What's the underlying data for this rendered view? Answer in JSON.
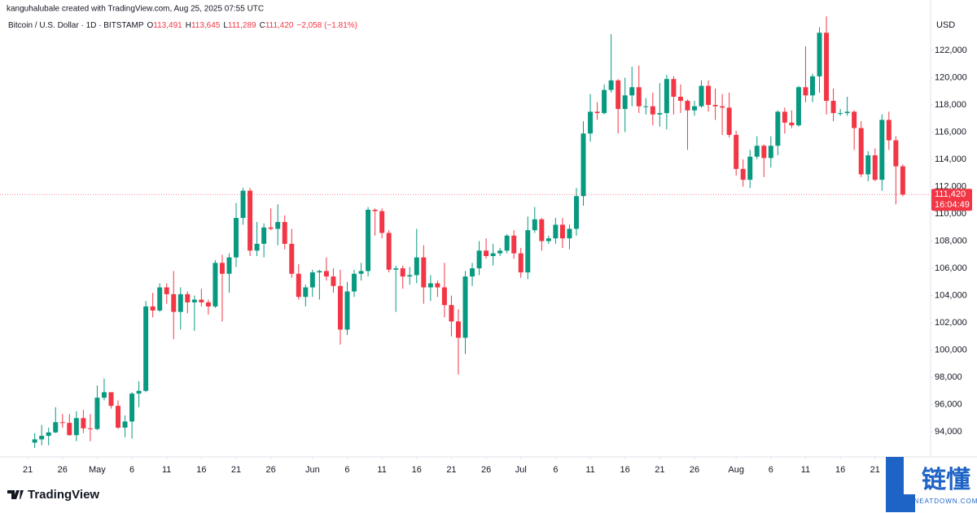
{
  "header": {
    "credit": "kanguhalubale created with TradingView.com, Aug 25, 2025 07:55 UTC",
    "symbol": "Bitcoin / U.S. Dollar · 1D · BITSTAMP",
    "ohlc": [
      {
        "key": "O",
        "value": "113,491"
      },
      {
        "key": "H",
        "value": "113,645"
      },
      {
        "key": "L",
        "value": "111,289"
      },
      {
        "key": "C",
        "value": "111,420"
      }
    ],
    "change": "−2,058 (−1.81%)"
  },
  "footer": {
    "logo": "TradingView",
    "watermark": "链懂",
    "watermark_sub": "NEATDOWN.COM"
  },
  "chart_data": {
    "type": "candlestick",
    "currency": "USD",
    "up_color": "#089981",
    "down_color": "#f23645",
    "x": [
      "04-22",
      "04-23",
      "04-24",
      "04-25",
      "04-26",
      "04-27",
      "04-28",
      "04-29",
      "04-30",
      "05-01",
      "05-02",
      "05-03",
      "05-04",
      "05-05",
      "05-06",
      "05-07",
      "05-08",
      "05-09",
      "05-10",
      "05-11",
      "05-12",
      "05-13",
      "05-14",
      "05-15",
      "05-16",
      "05-17",
      "05-18",
      "05-19",
      "05-20",
      "05-21",
      "05-22",
      "05-23",
      "05-24",
      "05-25",
      "05-26",
      "05-27",
      "05-28",
      "05-29",
      "05-30",
      "05-31",
      "06-01",
      "06-02",
      "06-03",
      "06-04",
      "06-05",
      "06-06",
      "06-07",
      "06-08",
      "06-09",
      "06-10",
      "06-11",
      "06-12",
      "06-13",
      "06-14",
      "06-15",
      "06-16",
      "06-17",
      "06-18",
      "06-19",
      "06-20",
      "06-21",
      "06-22",
      "06-23",
      "06-24",
      "06-25",
      "06-26",
      "06-27",
      "06-28",
      "06-29",
      "06-30",
      "07-01",
      "07-02",
      "07-03",
      "07-04",
      "07-05",
      "07-06",
      "07-07",
      "07-08",
      "07-09",
      "07-10",
      "07-11",
      "07-12",
      "07-13",
      "07-14",
      "07-15",
      "07-16",
      "07-17",
      "07-18",
      "07-19",
      "07-20",
      "07-21",
      "07-22",
      "07-23",
      "07-24",
      "07-25",
      "07-26",
      "07-27",
      "07-28",
      "07-29",
      "07-30",
      "07-31",
      "08-01",
      "08-02",
      "08-03",
      "08-04",
      "08-05",
      "08-06",
      "08-07",
      "08-08",
      "08-09",
      "08-10",
      "08-11",
      "08-12",
      "08-13",
      "08-14",
      "08-15",
      "08-16",
      "08-17",
      "08-18",
      "08-19",
      "08-20",
      "08-21",
      "08-22",
      "08-23",
      "08-24",
      "08-25"
    ],
    "open": [
      93200,
      93440,
      93700,
      93950,
      94700,
      94650,
      93750,
      95000,
      94250,
      94200,
      96500,
      96900,
      95900,
      94300,
      94750,
      96800,
      97000,
      103200,
      102900,
      104600,
      104100,
      102800,
      104100,
      103500,
      103700,
      103500,
      103200,
      106400,
      105600,
      106800,
      109700,
      111700,
      107300,
      107800,
      109000,
      108900,
      109400,
      107800,
      105600,
      103900,
      104600,
      105700,
      105800,
      105400,
      104700,
      101500,
      104300,
      105600,
      105800,
      110300,
      110200,
      108600,
      105900,
      106000,
      105400,
      105500,
      106800,
      104600,
      104900,
      104600,
      103300,
      102100,
      100900,
      105400,
      106000,
      107300,
      106900,
      107100,
      107300,
      108400,
      107100,
      105700,
      108800,
      109600,
      108000,
      108200,
      109200,
      108200,
      108900,
      111300,
      115900,
      117500,
      117400,
      119100,
      119800,
      117700,
      118700,
      119300,
      117900,
      117900,
      117300,
      117400,
      119900,
      118600,
      118300,
      117600,
      117900,
      119400,
      118000,
      117900,
      117800,
      115800,
      113300,
      112500,
      114200,
      115000,
      114100,
      115000,
      117500,
      116700,
      116500,
      119300,
      118700,
      120100,
      123300,
      118300,
      117400,
      117400,
      117500,
      116300,
      112900,
      114300,
      112500,
      116900,
      115400,
      113491
    ],
    "high": [
      93900,
      94500,
      94300,
      95800,
      95300,
      95300,
      95500,
      95600,
      95300,
      97400,
      97900,
      96900,
      96300,
      95200,
      96900,
      97700,
      103600,
      104200,
      104900,
      104900,
      105800,
      104600,
      104300,
      104000,
      104500,
      103700,
      106600,
      107000,
      107100,
      110800,
      111900,
      111900,
      109400,
      109300,
      110400,
      110700,
      109900,
      108900,
      106300,
      104800,
      105900,
      105900,
      106800,
      106000,
      105900,
      105000,
      105900,
      106400,
      110500,
      110400,
      110400,
      108800,
      106200,
      106200,
      106100,
      108900,
      107700,
      105500,
      105100,
      106400,
      104000,
      103000,
      105800,
      106400,
      108000,
      108200,
      107800,
      107500,
      108500,
      108800,
      107500,
      109800,
      110500,
      109700,
      108400,
      109700,
      109700,
      109200,
      111900,
      116800,
      118800,
      118200,
      119500,
      123200,
      119900,
      120000,
      120800,
      120900,
      118500,
      118900,
      119600,
      120200,
      120100,
      119500,
      118400,
      118300,
      119800,
      119800,
      119200,
      118800,
      118900,
      116100,
      114000,
      114700,
      115700,
      115100,
      115700,
      117600,
      117800,
      117600,
      119400,
      122300,
      120300,
      123700,
      124500,
      119200,
      117700,
      118600,
      117600,
      116800,
      114600,
      114800,
      117300,
      117500,
      115700,
      113645
    ],
    "low": [
      92800,
      93000,
      93000,
      93900,
      94300,
      93700,
      93300,
      93900,
      93300,
      94100,
      96300,
      95700,
      94200,
      93600,
      93500,
      95800,
      96900,
      102400,
      102800,
      103400,
      100800,
      101500,
      102700,
      101400,
      103200,
      102600,
      103100,
      102100,
      104200,
      106100,
      109200,
      106900,
      106900,
      106800,
      108800,
      107700,
      107400,
      105300,
      103700,
      103200,
      103900,
      103700,
      105100,
      104200,
      100400,
      101100,
      103900,
      105100,
      105400,
      108400,
      108200,
      105700,
      102800,
      104500,
      104800,
      104900,
      103400,
      103600,
      103900,
      102400,
      101000,
      98200,
      99700,
      104700,
      105500,
      106700,
      106200,
      106900,
      107100,
      106700,
      105300,
      105200,
      108600,
      107300,
      107800,
      107800,
      107500,
      107400,
      108400,
      110600,
      115300,
      116900,
      117300,
      118900,
      115900,
      116000,
      117900,
      117400,
      117300,
      116500,
      116400,
      116200,
      117300,
      117400,
      114700,
      117200,
      117800,
      117500,
      116900,
      115800,
      115600,
      112800,
      112000,
      111900,
      114000,
      112700,
      113400,
      114300,
      115900,
      116300,
      116400,
      118200,
      118200,
      118900,
      117300,
      116800,
      117200,
      117200,
      114700,
      112700,
      112400,
      112400,
      111700,
      114700,
      110700,
      111289
    ],
    "close": [
      93440,
      93700,
      93950,
      94700,
      94650,
      93750,
      95000,
      94250,
      94200,
      96500,
      96900,
      95900,
      94300,
      94750,
      96800,
      97000,
      103200,
      102900,
      104600,
      104100,
      102800,
      104100,
      103500,
      103700,
      103500,
      103200,
      106400,
      105600,
      106800,
      109700,
      111700,
      107300,
      107800,
      109000,
      108900,
      109400,
      107800,
      105600,
      103900,
      104600,
      105700,
      105800,
      105400,
      104700,
      101500,
      104300,
      105600,
      105800,
      110300,
      110200,
      108600,
      105900,
      106000,
      105400,
      105500,
      106800,
      104600,
      104900,
      104600,
      103300,
      102100,
      100900,
      105400,
      106000,
      107300,
      106900,
      107100,
      107300,
      108400,
      107100,
      105700,
      108800,
      109600,
      108000,
      108200,
      109200,
      108200,
      108900,
      111300,
      115900,
      117500,
      117400,
      119100,
      119800,
      117700,
      118700,
      119300,
      117900,
      117900,
      117300,
      117400,
      119900,
      118600,
      118300,
      117600,
      117900,
      119400,
      118000,
      117900,
      117800,
      115800,
      113300,
      112500,
      114200,
      115000,
      114100,
      115000,
      117500,
      116700,
      116500,
      119300,
      118700,
      120100,
      123300,
      118300,
      117400,
      117400,
      117500,
      116300,
      112900,
      114300,
      112500,
      116900,
      115400,
      113491,
      111420
    ],
    "last_price_label": "111,420",
    "countdown": "16:04:49",
    "xlim": [
      "04-17",
      "08-29"
    ],
    "xticks": [
      {
        "value": "04-21",
        "label": "21"
      },
      {
        "value": "04-26",
        "label": "26"
      },
      {
        "value": "05-01",
        "label": "May"
      },
      {
        "value": "05-06",
        "label": "6"
      },
      {
        "value": "05-11",
        "label": "11"
      },
      {
        "value": "05-16",
        "label": "16"
      },
      {
        "value": "05-21",
        "label": "21"
      },
      {
        "value": "05-26",
        "label": "26"
      },
      {
        "value": "06-01",
        "label": "Jun"
      },
      {
        "value": "06-06",
        "label": "6"
      },
      {
        "value": "06-11",
        "label": "11"
      },
      {
        "value": "06-16",
        "label": "16"
      },
      {
        "value": "06-21",
        "label": "21"
      },
      {
        "value": "06-26",
        "label": "26"
      },
      {
        "value": "07-01",
        "label": "Jul"
      },
      {
        "value": "07-06",
        "label": "6"
      },
      {
        "value": "07-11",
        "label": "11"
      },
      {
        "value": "07-16",
        "label": "16"
      },
      {
        "value": "07-21",
        "label": "21"
      },
      {
        "value": "07-26",
        "label": "26"
      },
      {
        "value": "08-01",
        "label": "Aug"
      },
      {
        "value": "08-06",
        "label": "6"
      },
      {
        "value": "08-11",
        "label": "11"
      },
      {
        "value": "08-16",
        "label": "16"
      },
      {
        "value": "08-21",
        "label": "21"
      }
    ],
    "ylim": [
      92270,
      124510
    ],
    "yticks": [
      {
        "value": 94000,
        "label": "94,000"
      },
      {
        "value": 96000,
        "label": "96,000"
      },
      {
        "value": 98000,
        "label": "98,000"
      },
      {
        "value": 100000,
        "label": "100,000"
      },
      {
        "value": 102000,
        "label": "102,000"
      },
      {
        "value": 104000,
        "label": "104,000"
      },
      {
        "value": 106000,
        "label": "106,000"
      },
      {
        "value": 108000,
        "label": "108,000"
      },
      {
        "value": 110000,
        "label": "110,000"
      },
      {
        "value": 112000,
        "label": "112,000"
      },
      {
        "value": 114000,
        "label": "114,000"
      },
      {
        "value": 116000,
        "label": "116,000"
      },
      {
        "value": 118000,
        "label": "118,000"
      },
      {
        "value": 120000,
        "label": "120,000"
      },
      {
        "value": 122000,
        "label": "122,000"
      }
    ],
    "grid": false
  }
}
